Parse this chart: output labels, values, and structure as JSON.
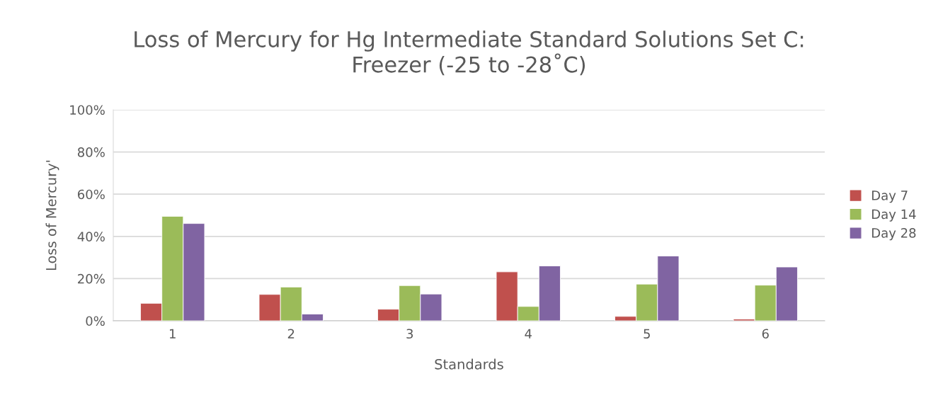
{
  "chart_data": {
    "type": "bar",
    "title": "Loss of Mercury for Hg Intermediate Standard Solutions Set C:\nFreezer (-25 to -28˚C)",
    "xlabel": "Standards",
    "ylabel": "Loss of Mercury'",
    "categories": [
      "1",
      "2",
      "3",
      "4",
      "5",
      "6"
    ],
    "series": [
      {
        "name": "Day 7",
        "color": "#c0504d",
        "values": [
          8.3,
          12.5,
          5.5,
          23.2,
          2.1,
          0.8
        ]
      },
      {
        "name": "Day 14",
        "color": "#9bbb59",
        "values": [
          49.5,
          16.0,
          16.7,
          6.8,
          17.4,
          16.9
        ]
      },
      {
        "name": "Day 28",
        "color": "#8064a2",
        "values": [
          46.1,
          3.2,
          12.7,
          26.0,
          30.7,
          25.5
        ]
      }
    ],
    "ylim": [
      0,
      100
    ],
    "yticks": [
      {
        "value": 0,
        "label": "0%"
      },
      {
        "value": 20,
        "label": "20%"
      },
      {
        "value": 40,
        "label": "40%"
      },
      {
        "value": 60,
        "label": "60%"
      },
      {
        "value": 80,
        "label": "80%"
      },
      {
        "value": 100,
        "label": "100%"
      }
    ],
    "grid": "y",
    "legend": "right"
  }
}
